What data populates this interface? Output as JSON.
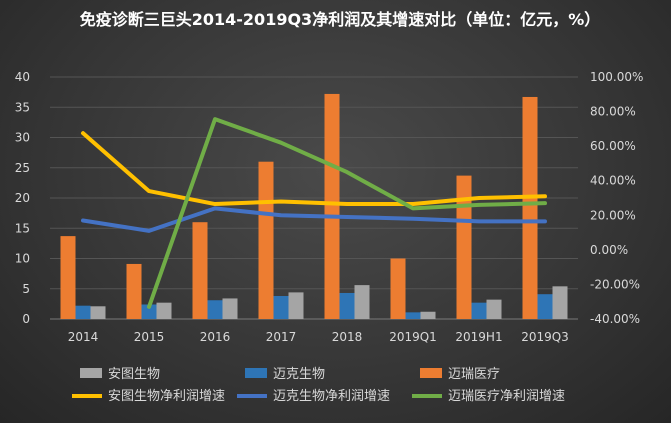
{
  "chart_data": {
    "type": "bar+line",
    "title": "免疫诊断三巨头2014-2019Q3净利润及其增速对比（单位：亿元，%）",
    "categories": [
      "2014",
      "2015",
      "2016",
      "2017",
      "2018",
      "2019Q1",
      "2019H1",
      "2019Q3"
    ],
    "y_left": {
      "range": [
        0,
        40
      ],
      "ticks": [
        "0",
        "5",
        "10",
        "15",
        "20",
        "25",
        "30",
        "35",
        "40"
      ]
    },
    "y_right": {
      "range": [
        -40,
        100
      ],
      "ticks": [
        "-40.00%",
        "-20.00%",
        "0.00%",
        "20.00%",
        "40.00%",
        "60.00%",
        "80.00%",
        "100.00%"
      ]
    },
    "grid": true,
    "legend_position": "bottom",
    "bar_series": [
      {
        "name": "安图生物",
        "color": "#a5a5a5",
        "values": [
          2.1,
          2.7,
          3.4,
          4.4,
          5.6,
          1.2,
          3.2,
          5.4
        ]
      },
      {
        "name": "迈克生物",
        "color": "#2e75b6",
        "values": [
          2.2,
          2.4,
          3.1,
          3.8,
          4.3,
          1.1,
          2.7,
          4.1
        ]
      },
      {
        "name": "迈瑞医疗",
        "color": "#ed7d31",
        "values": [
          13.7,
          9.1,
          16.0,
          26.0,
          37.2,
          10.0,
          23.7,
          36.7
        ]
      }
    ],
    "line_series": [
      {
        "name": "安图生物净利润增速",
        "color": "#ffc000",
        "values": [
          67.5,
          34,
          26.5,
          28,
          26.5,
          26.5,
          30,
          31
        ]
      },
      {
        "name": "迈克生物净利润增速",
        "color": "#4472c4",
        "values": [
          17,
          11,
          24,
          20,
          19,
          18,
          16.5,
          16.5
        ]
      },
      {
        "name": "迈瑞医疗净利润增速",
        "color": "#70ad47",
        "values": [
          null,
          -33,
          75.6,
          62,
          45,
          24,
          26,
          27
        ]
      }
    ]
  }
}
